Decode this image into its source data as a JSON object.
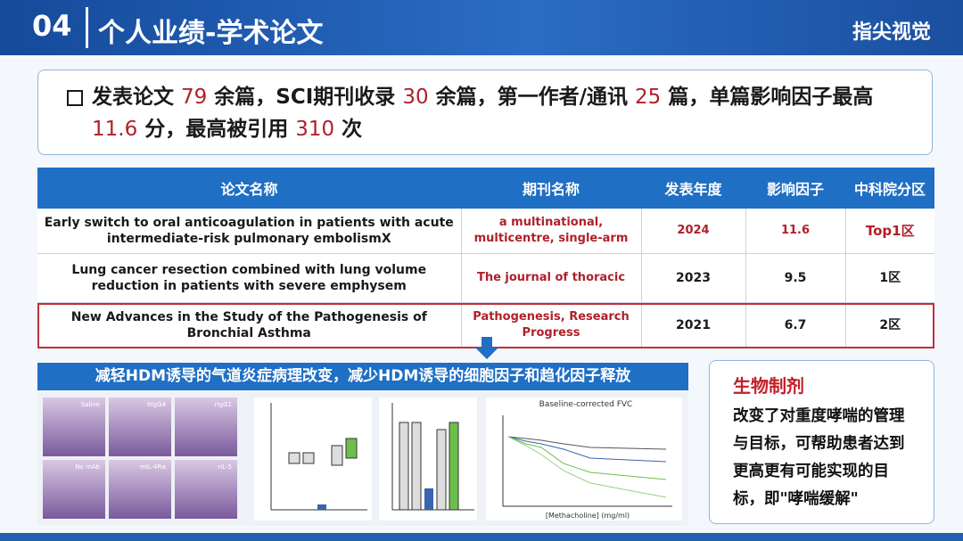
{
  "header": {
    "number": "04",
    "title": "个人业绩-学术论文",
    "brand": "指尖视觉"
  },
  "summary": {
    "parts": [
      {
        "text": "发表论文 "
      },
      {
        "text": "79",
        "highlight": true
      },
      {
        "text": " 余篇，SCI期刊收录 "
      },
      {
        "text": "30",
        "highlight": true
      },
      {
        "text": " 余篇，第一作者/通讯 "
      },
      {
        "text": "25",
        "highlight": true
      },
      {
        "text": " 篇，单篇影响因子最高 "
      },
      {
        "text": "11.6",
        "highlight": true
      },
      {
        "text": " 分，最高被引用 "
      },
      {
        "text": "310",
        "highlight": true
      },
      {
        "text": " 次"
      }
    ]
  },
  "table": {
    "headers": [
      "论文名称",
      "期刊名称",
      "发表年度",
      "影响因子",
      "中科院分区"
    ],
    "rows": [
      [
        "Early switch to oral anticoagulation in patients with acute intermediate-risk pulmonary embolismX",
        "a multinational, multicentre, single-arm",
        "2024",
        "11.6",
        "Top1区"
      ],
      [
        "Lung cancer resection combined with lung volume reduction in patients with severe emphysem",
        "The journal of thoracic",
        "2023",
        "9.5",
        "1区"
      ],
      [
        "New Advances in the Study of the  Pathogenesis of Bronchial Asthma",
        "Pathogenesis, Research Progress",
        "2021",
        "6.7",
        "2区"
      ]
    ]
  },
  "banner": "减轻HDM诱导的气道炎症病理改变，减少HDM诱导的细胞因子和趋化因子释放",
  "figures": {
    "histology_labels": [
      "Saline",
      "hIgG4",
      "rIgG1",
      "No mAb",
      "mIL-4Rα",
      "rIL-5"
    ],
    "fvc_title": "Baseline-corrected FVC",
    "fvc_xlabel": "[Methacholine] (mg/ml)"
  },
  "side": {
    "title": "生物制剂",
    "body": "改变了对重度哮喘的管理与目标，可帮助患者达到更高更有可能实现的目标，即\"哮喘缓解\""
  }
}
